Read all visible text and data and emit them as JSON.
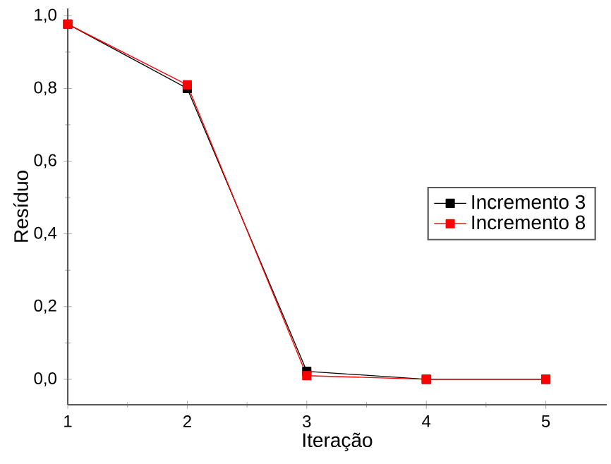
{
  "chart_data": {
    "type": "line",
    "xlabel": "Iteração",
    "ylabel": "Resíduo",
    "x": [
      1,
      2,
      3,
      4,
      5
    ],
    "series": [
      {
        "name": "Incremento 3",
        "color": "#000000",
        "values": [
          0.977,
          0.8,
          0.022,
          0,
          0
        ]
      },
      {
        "name": "Incremento 8",
        "color": "#ff0000",
        "values": [
          0.977,
          0.81,
          0.01,
          0,
          0
        ]
      }
    ],
    "xlim": [
      1,
      5.51
    ],
    "ylim": [
      -0.07,
      1.02
    ],
    "xticks": [
      1,
      2,
      3,
      4,
      5
    ],
    "yticks": [
      {
        "value": 0,
        "label": "0,0"
      },
      {
        "value": 0.2,
        "label": "0,2"
      },
      {
        "value": 0.4,
        "label": "0,4"
      },
      {
        "value": 0.6,
        "label": "0,6"
      },
      {
        "value": 0.8,
        "label": "0,8"
      },
      {
        "value": 1.0,
        "label": "1,0"
      }
    ],
    "legend": "right",
    "marker": "square",
    "line_style": "solid"
  }
}
